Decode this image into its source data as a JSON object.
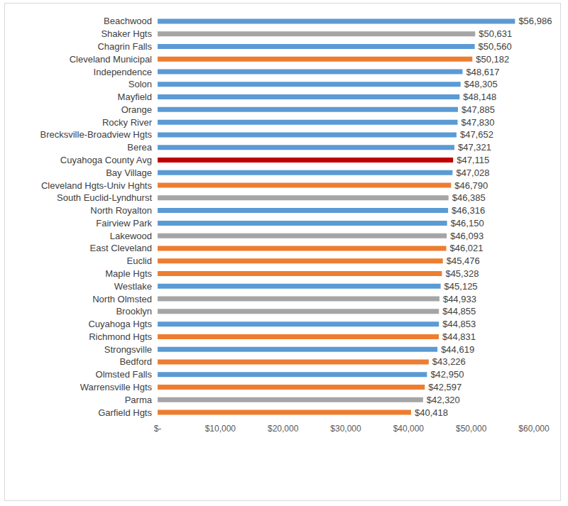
{
  "chart_data": {
    "type": "bar",
    "orientation": "horizontal",
    "grid": false,
    "data_labels": true,
    "categories": [
      "Beachwood",
      "Shaker Hgts",
      "Chagrin Falls",
      "Cleveland Municipal",
      "Independence",
      "Solon",
      "Mayfield",
      "Orange",
      "Rocky River",
      "Brecksville-Broadview Hgts",
      "Berea",
      "Cuyahoga County Avg",
      "Bay Village",
      "Cleveland Hgts-Univ Hghts",
      "South Euclid-Lyndhurst",
      "North Royalton",
      "Fairview Park",
      "Lakewood",
      "East Cleveland",
      "Euclid",
      "Maple Hgts",
      "Westlake",
      "North Olmsted",
      "Brooklyn",
      "Cuyahoga Hgts",
      "Richmond Hgts",
      "Strongsville",
      "Bedford",
      "Olmsted Falls",
      "Warrensville Hgts",
      "Parma",
      "Garfield Hgts"
    ],
    "values": [
      56986,
      50631,
      50560,
      50182,
      48617,
      48305,
      48148,
      47885,
      47830,
      47652,
      47321,
      47115,
      47028,
      46790,
      46385,
      46316,
      46150,
      46093,
      46021,
      45476,
      45328,
      45125,
      44933,
      44855,
      44853,
      44831,
      44619,
      43226,
      42950,
      42597,
      42320,
      40418
    ],
    "value_labels": [
      "$56,986",
      "$50,631",
      "$50,560",
      "$50,182",
      "$48,617",
      "$48,305",
      "$48,148",
      "$47,885",
      "$47,830",
      "$47,652",
      "$47,321",
      "$47,115",
      "$47,028",
      "$46,790",
      "$46,385",
      "$46,316",
      "$46,150",
      "$46,093",
      "$46,021",
      "$45,476",
      "$45,328",
      "$45,125",
      "$44,933",
      "$44,855",
      "$44,853",
      "$44,831",
      "$44,619",
      "$43,226",
      "$42,950",
      "$42,597",
      "$42,320",
      "$40,418"
    ],
    "colors": [
      "#5b9bd5",
      "#a5a5a5",
      "#5b9bd5",
      "#ed7d31",
      "#5b9bd5",
      "#5b9bd5",
      "#5b9bd5",
      "#5b9bd5",
      "#5b9bd5",
      "#5b9bd5",
      "#5b9bd5",
      "#c00000",
      "#5b9bd5",
      "#ed7d31",
      "#a5a5a5",
      "#5b9bd5",
      "#5b9bd5",
      "#a5a5a5",
      "#ed7d31",
      "#ed7d31",
      "#ed7d31",
      "#5b9bd5",
      "#a5a5a5",
      "#a5a5a5",
      "#5b9bd5",
      "#ed7d31",
      "#5b9bd5",
      "#ed7d31",
      "#5b9bd5",
      "#ed7d31",
      "#a5a5a5",
      "#ed7d31"
    ],
    "xlim": [
      0,
      60000
    ],
    "xticks": [
      {
        "value": 0,
        "label": "$-"
      },
      {
        "value": 10000,
        "label": "$10,000"
      },
      {
        "value": 20000,
        "label": "$20,000"
      },
      {
        "value": 30000,
        "label": "$30,000"
      },
      {
        "value": 40000,
        "label": "$40,000"
      },
      {
        "value": 50000,
        "label": "$50,000"
      },
      {
        "value": 60000,
        "label": "$60,000"
      }
    ]
  }
}
